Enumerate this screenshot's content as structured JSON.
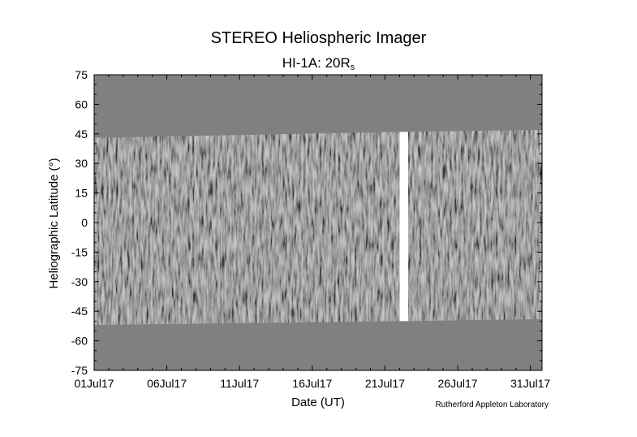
{
  "chart_data": {
    "type": "heatmap",
    "title": "STEREO Heliospheric Imager",
    "subtitle_main": "HI-1A: 20R",
    "subtitle_sub": "s",
    "xlabel": "Date (UT)",
    "ylabel": "Heliographic Latitude (°)",
    "credit": "Rutherford Appleton Laboratory",
    "x_ticks": [
      {
        "day": 1,
        "label": "01Jul17"
      },
      {
        "day": 6,
        "label": "06Jul17"
      },
      {
        "day": 11,
        "label": "11Jul17"
      },
      {
        "day": 16,
        "label": "16Jul17"
      },
      {
        "day": 21,
        "label": "21Jul17"
      },
      {
        "day": 26,
        "label": "26Jul17"
      },
      {
        "day": 31,
        "label": "31Jul17"
      }
    ],
    "y_ticks": [
      75,
      60,
      45,
      30,
      15,
      0,
      -15,
      -30,
      -45,
      -60,
      -75
    ],
    "xlim": [
      1,
      31.8
    ],
    "ylim": [
      -75,
      75
    ],
    "data_segments": [
      {
        "start_day": 1.0,
        "end_day": 22.0,
        "lat_top_start": 43,
        "lat_top_end": 46,
        "lat_bottom_start": -52,
        "lat_bottom_end": -50
      },
      {
        "start_day": 22.6,
        "end_day": 31.8,
        "lat_top_start": 46,
        "lat_top_end": 47,
        "lat_bottom_start": -50,
        "lat_bottom_end": -49
      }
    ],
    "background_color": "#808080",
    "data_gap_color": "#ffffff"
  }
}
